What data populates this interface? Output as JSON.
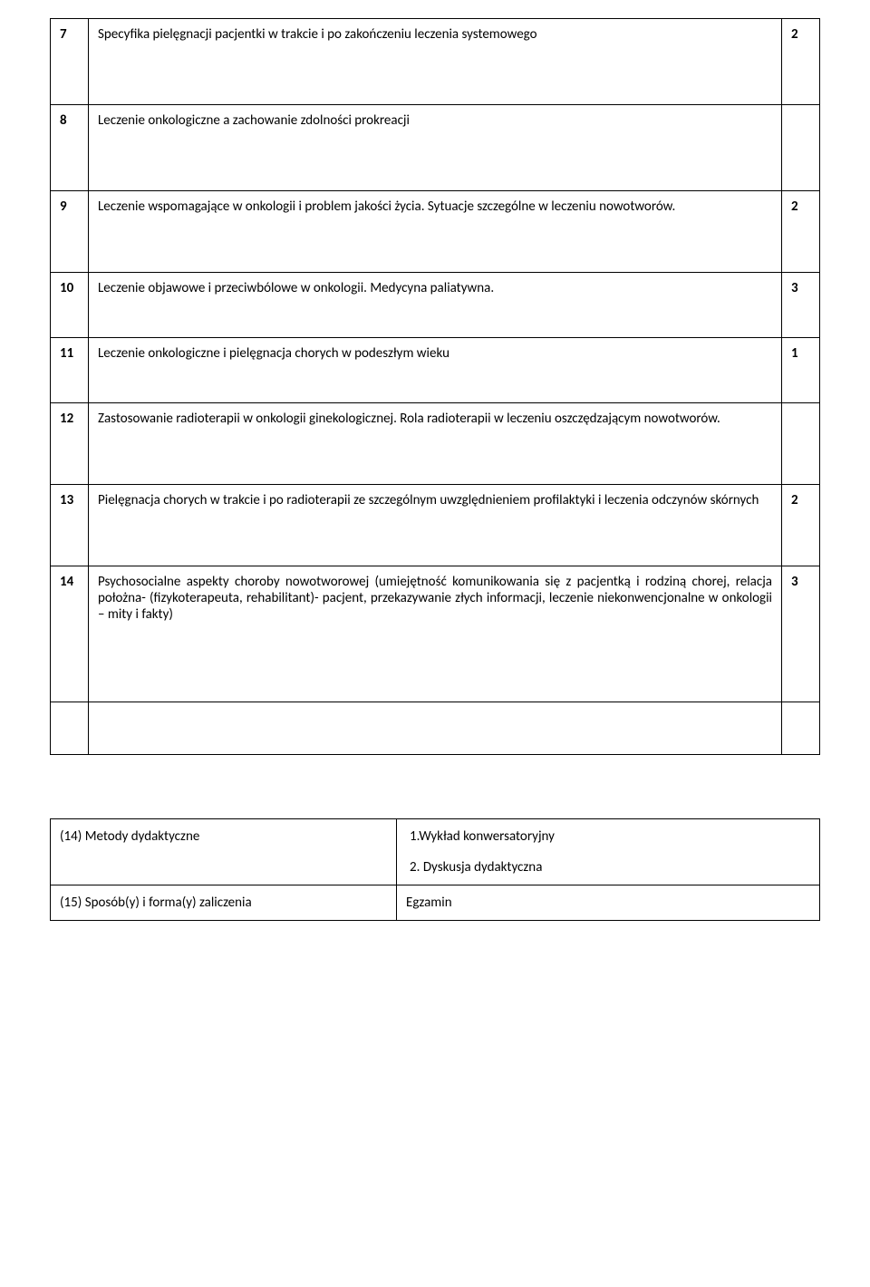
{
  "rows": [
    {
      "num": "7",
      "text": "Specyfika pielęgnacji pacjentki w trakcie i po zakończeniu leczenia systemowego",
      "hrs": "2"
    },
    {
      "num": "8",
      "text": "Leczenie onkologiczne a zachowanie zdolności prokreacji",
      "hrs": ""
    },
    {
      "num": "9",
      "text": "Leczenie wspomagające w onkologii i problem jakości życia. Sytuacje szczególne w leczeniu nowotworów.",
      "hrs": "2"
    },
    {
      "num": "10",
      "text": "Leczenie objawowe i przeciwbólowe w onkologii. Medycyna paliatywna.",
      "hrs": "3"
    },
    {
      "num": "11",
      "text": "Leczenie onkologiczne i pielęgnacja chorych w podeszłym wieku",
      "hrs": "1"
    },
    {
      "num": "12",
      "text": "Zastosowanie radioterapii w  onkologii ginekologicznej. Rola radioterapii w leczeniu oszczędzającym nowotworów.",
      "hrs": ""
    },
    {
      "num": "13",
      "text": "Pielęgnacja chorych w trakcie i po radioterapii ze szczególnym uwzględnieniem profilaktyki i leczenia odczynów skórnych",
      "hrs": "2"
    },
    {
      "num": "14",
      "text": "Psychosocialne aspekty choroby nowotworowej (umiejętność komunikowania się z pacjentką i rodziną chorej, relacja położna- (fizykoterapeuta, rehabilitant)- pacjent, przekazywanie złych informacji, leczenie niekonwencjonalne w onkologii – mity i fakty)",
      "hrs": "3"
    }
  ],
  "bottom": {
    "row1_left": "(14) Metody dydaktyczne",
    "row1_right_a": "1.Wykład konwersatoryjny",
    "row1_right_b": "2. Dyskusja dydaktyczna",
    "row2_left": "(15) Sposób(y) i forma(y) zaliczenia",
    "row2_right": "Egzamin"
  },
  "colors": {
    "text": "#000000",
    "border": "#000000",
    "bg": "#ffffff"
  },
  "font": {
    "family": "Calibri, Arial, sans-serif",
    "size_pt": 11
  }
}
